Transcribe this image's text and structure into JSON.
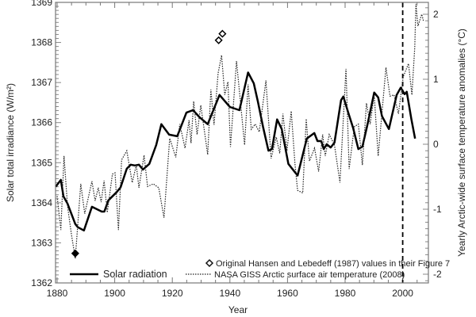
{
  "chart_data": {
    "type": "line",
    "title": "",
    "xlabel": "Year",
    "ylabel_left": "Solar total irradiance (W/m²)",
    "ylabel_right": "Yearly Arctic-wide surface temperature anomalies (°C)",
    "xlim": [
      1880,
      2009
    ],
    "ylim_left": [
      1362,
      1369
    ],
    "ylim_right": [
      -2.2,
      2.2
    ],
    "x_ticks": [
      "1880",
      "1900",
      "1920",
      "1940",
      "1960",
      "1980",
      "2000"
    ],
    "y_ticks_left": [
      "1362",
      "1363",
      "1364",
      "1365",
      "1366",
      "1367",
      "1368",
      "1369"
    ],
    "y_ticks_right": [
      "-2",
      "-1",
      "0",
      "1",
      "2"
    ],
    "grid": false,
    "vertical_marker_year": 2000,
    "series": [
      {
        "name": "Solar radiation",
        "axis": "left",
        "style": "solid",
        "x": [
          1879.5,
          1881.3,
          1882.2,
          1883.6,
          1886.3,
          1887.2,
          1889.3,
          1892.1,
          1895.5,
          1896.4,
          1897.8,
          1900.6,
          1902,
          1904.2,
          1905.6,
          1907,
          1908.4,
          1909.8,
          1912,
          1914.4,
          1916.2,
          1918.9,
          1921.7,
          1924.9,
          1927.2,
          1929.5,
          1932.3,
          1936.4,
          1940,
          1943.3,
          1946.3,
          1948.3,
          1949.7,
          1951.5,
          1953.4,
          1954.6,
          1956.4,
          1958,
          1960.3,
          1963.5,
          1966.7,
          1969.3,
          1970.4,
          1971.7,
          1972.6,
          1973.6,
          1975,
          1976.3,
          1978.6,
          1979.4,
          1980.9,
          1982.8,
          1984.6,
          1986,
          1987.8,
          1990.1,
          1991.5,
          1992.8,
          1995.2,
          1997.9,
          1999.3,
          2000.7,
          2001.4,
          2003,
          2004.3
        ],
        "y": [
          1364.4,
          1364.57,
          1364.16,
          1363.98,
          1363.47,
          1363.39,
          1363.31,
          1363.9,
          1363.78,
          1363.78,
          1364.06,
          1364.26,
          1364.38,
          1364.85,
          1364.95,
          1364.93,
          1364.95,
          1364.83,
          1364.97,
          1365.44,
          1365.96,
          1365.7,
          1365.66,
          1366.25,
          1366.31,
          1366.13,
          1365.96,
          1366.69,
          1366.39,
          1366.31,
          1367.25,
          1366.98,
          1366.53,
          1365.9,
          1365.3,
          1365.34,
          1366.08,
          1365.84,
          1364.97,
          1364.68,
          1365.6,
          1365.74,
          1365.54,
          1365.54,
          1365.34,
          1365.46,
          1365.38,
          1365.5,
          1366.56,
          1366.65,
          1366.29,
          1365.86,
          1365.34,
          1365.4,
          1365.96,
          1366.75,
          1366.63,
          1366.16,
          1365.84,
          1366.69,
          1366.87,
          1366.71,
          1366.77,
          1366.09,
          1365.6
        ]
      },
      {
        "name": "NASA GISS Arctic surface air temperature (2008)",
        "axis": "right",
        "style": "dotted",
        "x": [
          1880,
          1881.3,
          1882.4,
          1883.6,
          1885,
          1886.3,
          1888.2,
          1889.6,
          1892.1,
          1893.2,
          1894.3,
          1895.3,
          1896.3,
          1897.4,
          1899.2,
          1900.1,
          1901.3,
          1902.4,
          1904.2,
          1906.1,
          1907.5,
          1908.4,
          1910.2,
          1911.4,
          1913.4,
          1915.3,
          1917.1,
          1919.1,
          1921.2,
          1922.6,
          1924.4,
          1925.8,
          1926.5,
          1927.4,
          1928.6,
          1929.9,
          1932.3,
          1933.4,
          1934.5,
          1935.9,
          1937.1,
          1938.2,
          1939.3,
          1940.2,
          1942.3,
          1945.1,
          1946.3,
          1947.4,
          1948.8,
          1950.2,
          1952.5,
          1954.3,
          1956.1,
          1957.3,
          1958.4,
          1959.8,
          1961.3,
          1962.6,
          1963.5,
          1965.3,
          1966.5,
          1967.6,
          1969.4,
          1970.8,
          1972.2,
          1973.1,
          1974.5,
          1976.3,
          1978.2,
          1980.3,
          1981.4,
          1983.2,
          1984.6,
          1986,
          1987.4,
          1988.7,
          1990.1,
          1991.5,
          1994.2,
          1995.6,
          1997,
          1998.5,
          2000.2,
          2002,
          2003.2,
          2004.2,
          2004.6,
          2005.3,
          2006.6,
          2007.2
        ],
        "y": [
          -0.8,
          -1.32,
          -0.18,
          -0.95,
          -1.4,
          -1.76,
          -0.61,
          -1.07,
          -0.57,
          -0.87,
          -0.67,
          -0.89,
          -0.56,
          -1.05,
          -0.46,
          -0.44,
          -1.32,
          -0.24,
          -0.1,
          -0.59,
          -0.32,
          -0.67,
          -0.17,
          -0.65,
          -0.61,
          -0.67,
          -1.13,
          0.09,
          -0.2,
          0.31,
          -0.06,
          0.37,
          0.02,
          0.66,
          0.15,
          0.6,
          -0.16,
          0.84,
          0.3,
          1.09,
          1.37,
          0.76,
          0.96,
          -0.04,
          1.28,
          -0.01,
          0.92,
          0.23,
          0.31,
          0.19,
          0.98,
          -0.22,
          0.11,
          -0.14,
          0.47,
          -0.1,
          0.51,
          -0.3,
          -0.71,
          -0.75,
          0.39,
          -0.26,
          -0.06,
          -0.42,
          0.15,
          -0.18,
          0.15,
          -0.01,
          -0.59,
          1.16,
          -0.38,
          0.27,
          0.31,
          -0.32,
          0.63,
          0.31,
          0.76,
          -0.18,
          1.18,
          0.74,
          0.76,
          0.47,
          1.04,
          1.24,
          0.76,
          1.49,
          2.16,
          1.82,
          2.0,
          1.9
        ]
      },
      {
        "name": "Original Hansen and Lebedeff (1987) values in their Figure 7",
        "axis": "right",
        "style": "open-diamond",
        "x": [
          1936.1,
          1937.4
        ],
        "y": [
          1.6,
          1.7
        ]
      },
      {
        "axis": "right",
        "style": "filled-diamond",
        "x": [
          1886.3
        ],
        "y": [
          -1.68
        ]
      }
    ],
    "legend": {
      "placement": "bottom-right",
      "entries": [
        "Original Hansen and Lebedeff (1987) values in their Figure 7",
        "Solar radiation",
        "NASA GISS Arctic surface air temperature (2008)"
      ]
    }
  }
}
